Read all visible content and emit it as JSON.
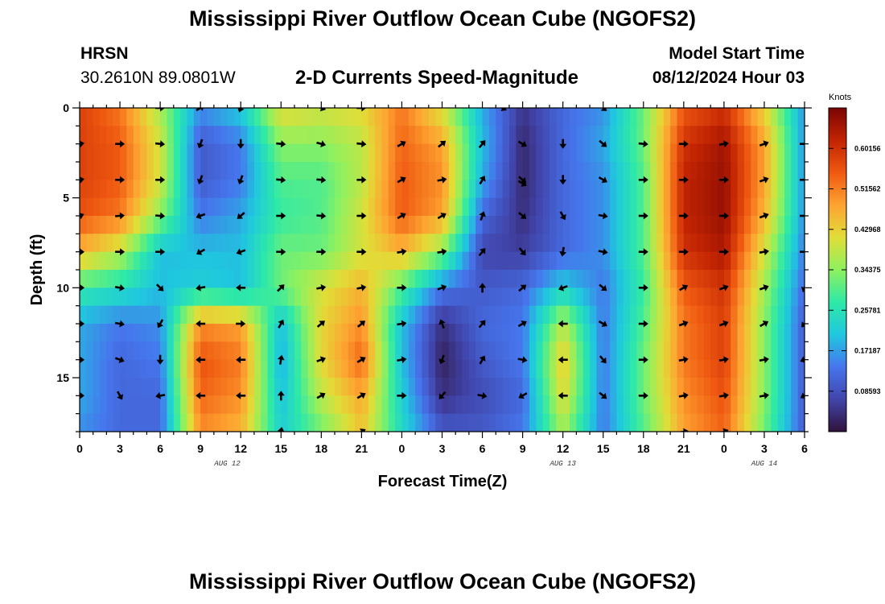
{
  "header": {
    "title": "Mississippi River Outflow Ocean Cube (NGOFS2)",
    "station_name": "HRSN",
    "station_coords": "30.2610N  89.0801W",
    "plot_title": "2-D Currents Speed-Magnitude",
    "model_label": "Model Start Time",
    "model_time": "08/12/2024 Hour 03"
  },
  "footer": {
    "title": "Mississippi River Outflow Ocean Cube (NGOFS2)"
  },
  "chart_data": {
    "type": "heatmap",
    "title": "2-D Currents Speed-Magnitude",
    "xlabel": "Forecast Time(Z)",
    "ylabel": "Depth (ft)",
    "x_unit": "hours since 08/12/2024 00Z",
    "xlim": [
      0,
      54
    ],
    "ylim": [
      18,
      0
    ],
    "x_tick_values": [
      0,
      3,
      6,
      9,
      12,
      15,
      18,
      21,
      24,
      27,
      30,
      33,
      36,
      39,
      42,
      45,
      48,
      51,
      54
    ],
    "x_tick_labels": [
      "0",
      "3",
      "6",
      "9",
      "12",
      "15",
      "18",
      "21",
      "0",
      "3",
      "6",
      "9",
      "12",
      "15",
      "18",
      "21",
      "0",
      "3",
      "6"
    ],
    "y_tick_values": [
      0,
      5,
      10,
      15
    ],
    "y_tick_labels": [
      "0",
      "5",
      "10",
      "15"
    ],
    "date_labels": [
      {
        "text": "AUG 12",
        "x": 11
      },
      {
        "text": "AUG 13",
        "x": 36
      },
      {
        "text": "AUG 14",
        "x": 51
      }
    ],
    "colorbar": {
      "unit": "Knots",
      "min": 0,
      "max": 0.6875,
      "labels": [
        "0.60156",
        "0.51562",
        "0.42968",
        "0.34375",
        "0.25781",
        "0.17187",
        "0.08593"
      ],
      "label_values": [
        0.60156,
        0.51562,
        0.42968,
        0.34375,
        0.25781,
        0.17187,
        0.08593
      ]
    },
    "speed_grid": {
      "times": [
        0,
        3,
        6,
        9,
        12,
        15,
        18,
        21,
        24,
        27,
        30,
        33,
        36,
        39,
        42,
        45,
        48,
        51,
        54
      ],
      "depths": [
        0,
        2,
        4,
        6,
        8,
        10,
        12,
        14,
        16,
        18
      ],
      "values": [
        [
          0.58,
          0.52,
          0.36,
          0.16,
          0.22,
          0.42,
          0.4,
          0.42,
          0.52,
          0.4,
          0.18,
          0.05,
          0.12,
          0.16,
          0.32,
          0.55,
          0.6,
          0.42,
          0.16
        ],
        [
          0.58,
          0.55,
          0.4,
          0.1,
          0.14,
          0.34,
          0.34,
          0.38,
          0.54,
          0.48,
          0.2,
          0.03,
          0.12,
          0.18,
          0.32,
          0.6,
          0.65,
          0.48,
          0.16
        ],
        [
          0.58,
          0.55,
          0.4,
          0.1,
          0.14,
          0.3,
          0.3,
          0.38,
          0.55,
          0.5,
          0.18,
          0.03,
          0.12,
          0.16,
          0.3,
          0.62,
          0.66,
          0.48,
          0.16
        ],
        [
          0.56,
          0.52,
          0.34,
          0.14,
          0.18,
          0.28,
          0.3,
          0.4,
          0.55,
          0.48,
          0.12,
          0.04,
          0.12,
          0.16,
          0.3,
          0.62,
          0.66,
          0.46,
          0.16
        ],
        [
          0.46,
          0.38,
          0.2,
          0.2,
          0.2,
          0.32,
          0.32,
          0.4,
          0.46,
          0.34,
          0.07,
          0.06,
          0.12,
          0.16,
          0.3,
          0.6,
          0.64,
          0.4,
          0.14
        ],
        [
          0.28,
          0.25,
          0.2,
          0.22,
          0.2,
          0.32,
          0.4,
          0.46,
          0.3,
          0.14,
          0.1,
          0.12,
          0.22,
          0.14,
          0.28,
          0.55,
          0.6,
          0.36,
          0.12
        ],
        [
          0.18,
          0.14,
          0.16,
          0.5,
          0.48,
          0.2,
          0.42,
          0.5,
          0.2,
          0.04,
          0.12,
          0.14,
          0.38,
          0.14,
          0.3,
          0.52,
          0.58,
          0.34,
          0.1
        ],
        [
          0.18,
          0.12,
          0.14,
          0.56,
          0.52,
          0.18,
          0.42,
          0.54,
          0.2,
          0.02,
          0.1,
          0.14,
          0.44,
          0.14,
          0.32,
          0.52,
          0.58,
          0.34,
          0.1
        ],
        [
          0.18,
          0.12,
          0.12,
          0.54,
          0.5,
          0.2,
          0.38,
          0.48,
          0.22,
          0.04,
          0.08,
          0.12,
          0.42,
          0.14,
          0.32,
          0.5,
          0.56,
          0.34,
          0.1
        ],
        [
          0.16,
          0.12,
          0.12,
          0.5,
          0.46,
          0.22,
          0.32,
          0.44,
          0.24,
          0.1,
          0.1,
          0.14,
          0.36,
          0.14,
          0.3,
          0.48,
          0.54,
          0.32,
          0.1
        ]
      ]
    },
    "direction_vectors": {
      "times": [
        0,
        3,
        6,
        9,
        12,
        15,
        18,
        21,
        24,
        27,
        30,
        33,
        36,
        39,
        42,
        45,
        48,
        51,
        54
      ],
      "depths": [
        2,
        4,
        6,
        8,
        10,
        12,
        14,
        16
      ],
      "directions_deg": [
        [
          80,
          90,
          95,
          200,
          180,
          95,
          105,
          95,
          60,
          50,
          40,
          120,
          180,
          130,
          95,
          90,
          80,
          70,
          90
        ],
        [
          80,
          90,
          90,
          200,
          200,
          95,
          95,
          90,
          60,
          80,
          30,
          130,
          180,
          120,
          90,
          90,
          90,
          70,
          90
        ],
        [
          70,
          85,
          95,
          250,
          230,
          90,
          95,
          90,
          60,
          60,
          20,
          130,
          150,
          100,
          90,
          90,
          90,
          70,
          90
        ],
        [
          90,
          90,
          90,
          240,
          250,
          90,
          90,
          90,
          80,
          80,
          40,
          140,
          190,
          100,
          90,
          90,
          90,
          80,
          90
        ],
        [
          90,
          100,
          135,
          260,
          270,
          45,
          80,
          80,
          90,
          70,
          0,
          50,
          250,
          130,
          90,
          60,
          70,
          70,
          200
        ],
        [
          90,
          100,
          210,
          270,
          90,
          30,
          50,
          50,
          80,
          340,
          40,
          60,
          270,
          120,
          90,
          70,
          70,
          60,
          220
        ],
        [
          90,
          110,
          180,
          270,
          270,
          10,
          70,
          60,
          80,
          200,
          30,
          100,
          270,
          140,
          90,
          80,
          80,
          80,
          250
        ],
        [
          90,
          150,
          260,
          270,
          270,
          0,
          60,
          60,
          90,
          220,
          100,
          240,
          270,
          130,
          90,
          80,
          80,
          80,
          240
        ]
      ]
    },
    "extra_arrows": [
      {
        "t": 6,
        "d": 0,
        "dir": 90
      },
      {
        "t": 9,
        "d": 0,
        "dir": 60
      },
      {
        "t": 12,
        "d": 0,
        "dir": 200
      },
      {
        "t": 18,
        "d": 0,
        "dir": 110
      },
      {
        "t": 21,
        "d": 0,
        "dir": 90
      },
      {
        "t": 31.5,
        "d": 0,
        "dir": 120
      },
      {
        "t": 39,
        "d": 0,
        "dir": 130
      },
      {
        "t": 15,
        "d": 18,
        "dir": 10
      },
      {
        "t": 21,
        "d": 18,
        "dir": 60
      },
      {
        "t": 45,
        "d": 18,
        "dir": 80
      },
      {
        "t": 48,
        "d": 18,
        "dir": 70
      },
      {
        "t": 33,
        "d": 4.2,
        "dir": 120
      }
    ]
  }
}
